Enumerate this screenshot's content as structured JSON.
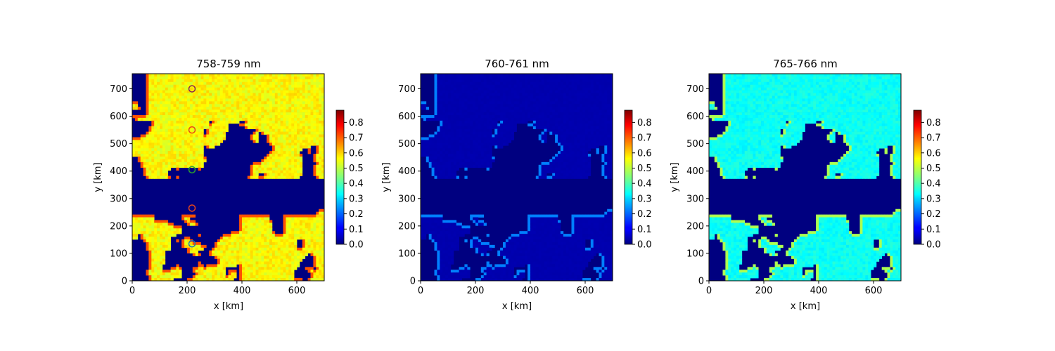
{
  "chart_data": [
    {
      "type": "heatmap",
      "title": "758-759 nm",
      "xlabel": "x [km]",
      "ylabel": "y [km]",
      "xlim": [
        0,
        700
      ],
      "ylim": [
        0,
        755
      ],
      "xticks": [
        "0",
        "200",
        "400",
        "600"
      ],
      "yticks": [
        "0",
        "100",
        "200",
        "300",
        "400",
        "500",
        "600",
        "700"
      ],
      "colorbar": {
        "colormap": "jet",
        "range": [
          0,
          0.88
        ],
        "ticks": [
          "0.0",
          "0.1",
          "0.2",
          "0.3",
          "0.4",
          "0.5",
          "0.6",
          "0.7",
          "0.8"
        ]
      },
      "clear_value": 0.0,
      "cloud_value": 0.55,
      "edge_value": 0.7,
      "markers": [
        {
          "x": 218,
          "y": 700,
          "color": "#8B2252"
        },
        {
          "x": 218,
          "y": 550,
          "color": "#e8451a"
        },
        {
          "x": 218,
          "y": 405,
          "color": "#2ca02c"
        },
        {
          "x": 218,
          "y": 265,
          "color": "#e8451a"
        },
        {
          "x": 218,
          "y": 135,
          "color": "#1f77b4"
        }
      ]
    },
    {
      "type": "heatmap",
      "title": "760-761 nm",
      "xlabel": "x [km]",
      "ylabel": "y [km]",
      "xlim": [
        0,
        700
      ],
      "ylim": [
        0,
        755
      ],
      "xticks": [
        "0",
        "200",
        "400",
        "600"
      ],
      "yticks": [
        "0",
        "100",
        "200",
        "300",
        "400",
        "500",
        "600",
        "700"
      ],
      "colorbar": {
        "colormap": "jet",
        "range": [
          0,
          0.88
        ],
        "ticks": [
          "0.0",
          "0.1",
          "0.2",
          "0.3",
          "0.4",
          "0.5",
          "0.6",
          "0.7",
          "0.8"
        ]
      },
      "clear_value": 0.0,
      "cloud_value": 0.04,
      "edge_value": 0.22,
      "markers": []
    },
    {
      "type": "heatmap",
      "title": "765-766 nm",
      "xlabel": "x [km]",
      "ylabel": "y [km]",
      "xlim": [
        0,
        700
      ],
      "ylim": [
        0,
        755
      ],
      "xticks": [
        "0",
        "200",
        "400",
        "600"
      ],
      "yticks": [
        "0",
        "100",
        "200",
        "300",
        "400",
        "500",
        "600",
        "700"
      ],
      "colorbar": {
        "colormap": "jet",
        "range": [
          0,
          0.88
        ],
        "ticks": [
          "0.0",
          "0.1",
          "0.2",
          "0.3",
          "0.4",
          "0.5",
          "0.6",
          "0.7",
          "0.8"
        ]
      },
      "clear_value": 0.0,
      "cloud_value": 0.34,
      "edge_value": 0.48,
      "markers": []
    }
  ]
}
